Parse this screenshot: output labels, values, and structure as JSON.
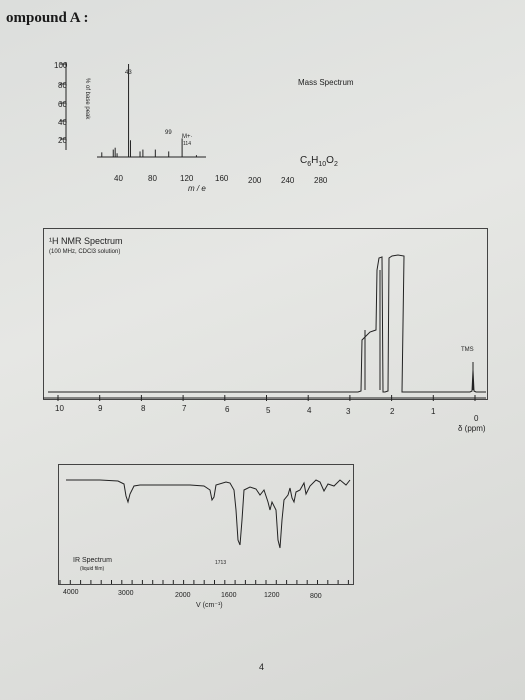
{
  "header": {
    "title": "ompound A :"
  },
  "mass_spectrum": {
    "title": "Mass Spectrum",
    "formula": "C6H10O2",
    "ylabel": "% of base peak",
    "xlabel": "m / e",
    "y_ticks": [
      "100",
      "80",
      "60",
      "40",
      "20"
    ],
    "x_ticks": [
      "40",
      "80",
      "120",
      "160",
      "200",
      "240",
      "280"
    ],
    "annotations": {
      "base_peak": "43",
      "peak_99": "99",
      "mplus": "M+·",
      "mplus_value": "114"
    }
  },
  "nmr": {
    "title": "¹H NMR Spectrum",
    "subtitle": "(100 MHz, CDCl3 solution)",
    "reference": "TMS",
    "x_ticks": [
      "10",
      "9",
      "8",
      "7",
      "6",
      "5",
      "4",
      "3",
      "2",
      "1",
      "0"
    ],
    "xlabel": "δ (ppm)"
  },
  "ir": {
    "title": "IR Spectrum",
    "subtitle": "(liquid film)",
    "peak_label": "1713",
    "x_ticks": [
      "4000",
      "3000",
      "2000",
      "1600",
      "1200",
      "800"
    ],
    "xlabel": "V (cm⁻¹)"
  },
  "footer": {
    "page_number": "4"
  },
  "chart_data": [
    {
      "type": "bar",
      "title": "Mass Spectrum",
      "xlabel": "m / e",
      "ylabel": "% of base peak",
      "xlim": [
        20,
        300
      ],
      "ylim": [
        0,
        100
      ],
      "x": [
        15,
        27,
        29,
        31,
        43,
        45,
        55,
        58,
        71,
        85,
        99,
        114
      ],
      "values": [
        5,
        8,
        10,
        4,
        100,
        18,
        6,
        8,
        8,
        6,
        20,
        2
      ]
    }
  ]
}
